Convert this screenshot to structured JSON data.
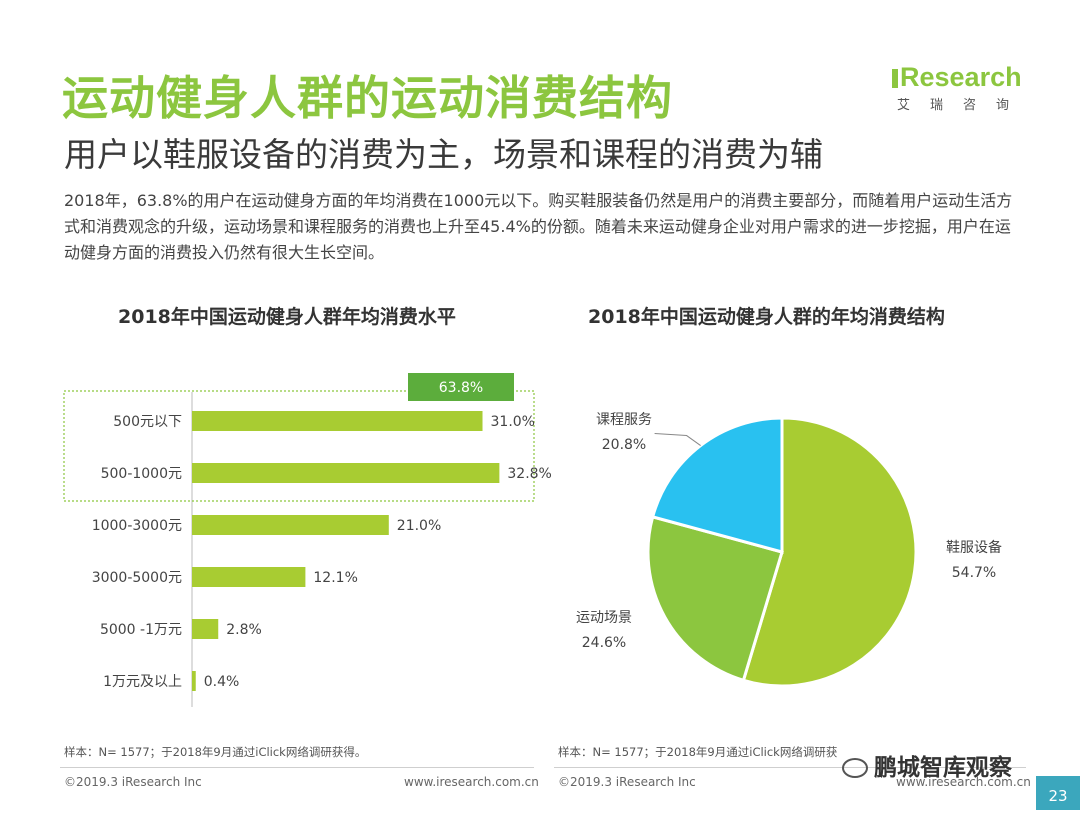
{
  "header": {
    "title": "运动健身人群的运动消费结构",
    "subtitle": "用户以鞋服设备的消费为主，场景和课程的消费为辅",
    "body": "2018年，63.8%的用户在运动健身方面的年均消费在1000元以下。购买鞋服装备仍然是用户的消费主要部分，而随着用户运动生活方式和消费观念的升级，运动场景和课程服务的消费也上升至45.4%的份额。随着未来运动健身企业对用户需求的进一步挖掘，用户在运动健身方面的消费投入仍然有很大生长空间。"
  },
  "logo": {
    "main": "Research",
    "sub": [
      "艾",
      "瑞",
      "咨",
      "询"
    ]
  },
  "colors": {
    "accent": "#8cc63f",
    "bar": "#a8cc32",
    "pie_green": "#a8cc32",
    "pie_blue": "#29c1f0",
    "badge": "#5cad3c",
    "page_num_bg": "#3ba7bd"
  },
  "chart_data": [
    {
      "type": "bar",
      "orientation": "horizontal",
      "title": "2018年中国运动健身人群年均消费水平",
      "categories": [
        "500元以下",
        "500-1000元",
        "1000-3000元",
        "3000-5000元",
        "5000 -1万元",
        "1万元及以上"
      ],
      "values": [
        31.0,
        32.8,
        21.0,
        12.1,
        2.8,
        0.4
      ],
      "value_labels": [
        "31.0%",
        "32.8%",
        "21.0%",
        "12.1%",
        "2.8%",
        "0.4%"
      ],
      "unit": "%",
      "xlim": [
        0,
        35
      ],
      "annotation": {
        "label": "63.8%",
        "highlights": [
          "500元以下",
          "500-1000元"
        ]
      }
    },
    {
      "type": "pie",
      "title": "2018年中国运动健身人群的年均消费结构",
      "labels": [
        "鞋服设备",
        "运动场景",
        "课程服务"
      ],
      "values": [
        54.7,
        24.6,
        20.8
      ],
      "value_labels": [
        "54.7%",
        "24.6%",
        "20.8%"
      ],
      "colors": [
        "#a8cc32",
        "#8cc63f",
        "#29c1f0"
      ]
    }
  ],
  "footnotes": {
    "left": "样本：N= 1577；于2018年9月通过iClick网络调研获得。",
    "right": "样本：N= 1577；于2018年9月通过iClick网络调研获"
  },
  "footer": {
    "copyright_left": "©2019.3  iResearch Inc",
    "url_left": "www.iresearch.com.cn",
    "copyright_right": "©2019.3  iResearch Inc",
    "url_right": "www.iresearch.com.cn",
    "page_number": "23",
    "watermark": "鹏城智库观察"
  }
}
